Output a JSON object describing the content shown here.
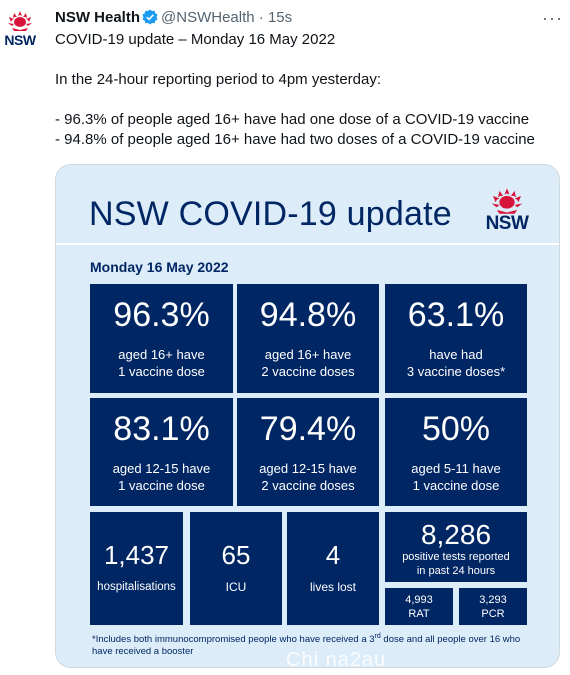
{
  "tweet": {
    "author_name": "NSW Health",
    "author_handle": "@NSWHealth",
    "dot": "·",
    "time": "15s",
    "more": "···",
    "avatar_text": "NSW",
    "lines": [
      "COVID-19 update – Monday 16 May 2022",
      "In the 24-hour reporting period to 4pm yesterday:",
      "- 96.3% of people aged 16+ have had one dose of a COVID-19 vaccine",
      "- 94.8% of people aged 16+ have had two doses of a COVID-19 vaccine"
    ]
  },
  "card": {
    "title": "NSW COVID-19 update",
    "logo_text": "NSW",
    "date": "Monday 16 May 2022",
    "tiles_row1": [
      {
        "value": "96.3%",
        "line1": "aged 16+ have",
        "line2": "1 vaccine dose"
      },
      {
        "value": "94.8%",
        "line1": "aged 16+ have",
        "line2": "2 vaccine doses"
      },
      {
        "value": "63.1%",
        "line1": "have had",
        "line2": "3 vaccine doses*"
      }
    ],
    "tiles_row2": [
      {
        "value": "83.1%",
        "line1": "aged 12-15 have",
        "line2": "1 vaccine dose"
      },
      {
        "value": "79.4%",
        "line1": "aged 12-15 have",
        "line2": "2 vaccine doses"
      },
      {
        "value": "50%",
        "line1": "aged 5-11 have",
        "line2": "1 vaccine dose"
      }
    ],
    "stats_row": [
      {
        "value": "1,437",
        "label": "hospitalisations"
      },
      {
        "value": "65",
        "label": "ICU"
      },
      {
        "value": "4",
        "label": "lives lost"
      }
    ],
    "tests": {
      "value": "8,286",
      "line1": "positive tests reported",
      "line2": "in past 24 hours",
      "rat_value": "4,993",
      "rat_label": "RAT",
      "pcr_value": "3,293",
      "pcr_label": "PCR"
    },
    "footnote_a": "*Includes both immunocompromised people who have received a 3",
    "footnote_sup": "rd",
    "footnote_b": " dose and all people over 16 who have received a booster"
  },
  "watermark": "Chi na2au",
  "colors": {
    "navy": "#002664",
    "waratah_red": "#d7153a",
    "card_bg": "#dcecf8",
    "verified_blue": "#1d9bf0"
  }
}
